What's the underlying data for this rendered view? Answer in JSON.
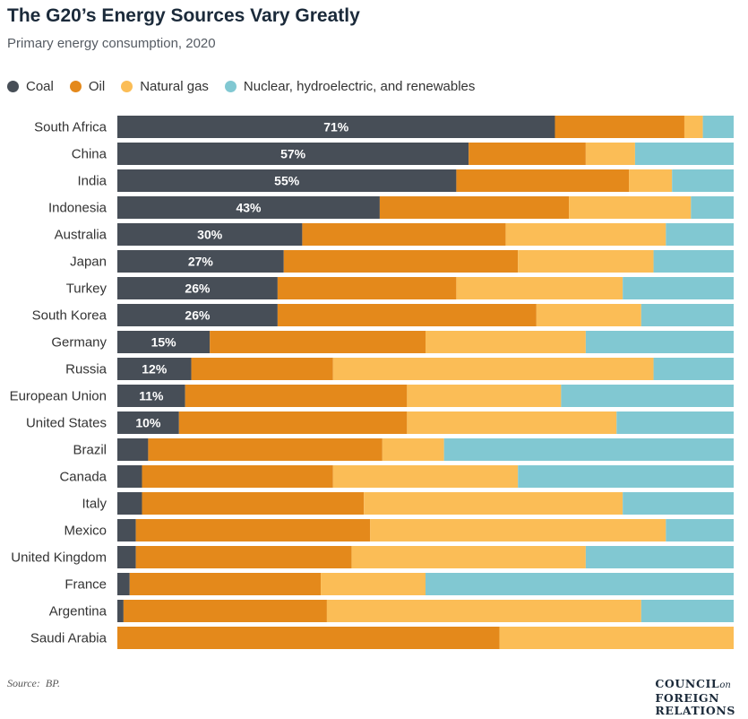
{
  "header": {
    "title": "The G20’s Energy Sources Vary Greatly",
    "subtitle": "Primary energy consumption, 2020"
  },
  "legend": [
    {
      "label": "Coal",
      "color": "#474e57"
    },
    {
      "label": "Oil",
      "color": "#e4891b"
    },
    {
      "label": "Natural gas",
      "color": "#fbbd56"
    },
    {
      "label": "Nuclear, hydroelectric, and renewables",
      "color": "#81c8d2"
    }
  ],
  "footer": {
    "source_label": "Source:",
    "source_text": "BP.",
    "logo_line1": "COUNCIL",
    "logo_on": "on",
    "logo_line2": "FOREIGN",
    "logo_line3": "RELATIONS"
  },
  "chart_data": {
    "type": "bar",
    "orientation": "horizontal",
    "stacked": true,
    "normalized_percent": true,
    "title": "The G20’s Energy Sources Vary Greatly",
    "subtitle": "Primary energy consumption, 2020",
    "legend_position": "top-left",
    "grid": false,
    "xlim": [
      0,
      100
    ],
    "categories": [
      "South Africa",
      "China",
      "India",
      "Indonesia",
      "Australia",
      "Japan",
      "Turkey",
      "South Korea",
      "Germany",
      "Russia",
      "European Union",
      "United States",
      "Brazil",
      "Canada",
      "Italy",
      "Mexico",
      "United Kingdom",
      "France",
      "Argentina",
      "Saudi Arabia"
    ],
    "series": [
      {
        "name": "Coal",
        "color": "#474e57",
        "values": [
          71,
          57,
          55,
          43,
          30,
          27,
          26,
          26,
          15,
          12,
          11,
          10,
          5,
          4,
          4,
          3,
          3,
          2,
          1,
          0
        ]
      },
      {
        "name": "Oil",
        "color": "#e4891b",
        "values": [
          21,
          19,
          28,
          31,
          33,
          38,
          29,
          42,
          35,
          23,
          36,
          37,
          38,
          31,
          36,
          38,
          35,
          31,
          33,
          62
        ]
      },
      {
        "name": "Natural gas",
        "color": "#fbbd56",
        "values": [
          3,
          8,
          7,
          20,
          26,
          22,
          27,
          17,
          26,
          52,
          25,
          34,
          10,
          30,
          42,
          48,
          38,
          17,
          51,
          38
        ]
      },
      {
        "name": "Nuclear, hydroelectric, and renewables",
        "color": "#81c8d2",
        "values": [
          5,
          16,
          10,
          7,
          11,
          13,
          18,
          15,
          24,
          13,
          28,
          19,
          47,
          35,
          18,
          11,
          24,
          50,
          15,
          0
        ]
      }
    ],
    "data_labels": [
      "71%",
      "57%",
      "55%",
      "43%",
      "30%",
      "27%",
      "26%",
      "26%",
      "15%",
      "12%",
      "11%",
      "10%",
      "",
      "",
      "",
      "",
      "",
      "",
      "",
      ""
    ]
  }
}
